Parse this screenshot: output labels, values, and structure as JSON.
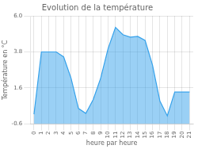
{
  "chart_data": {
    "type": "area",
    "title": "Evolution de la température",
    "xlabel": "heure par heure",
    "ylabel": "Température en °C",
    "x": [
      0,
      1,
      2,
      3,
      4,
      5,
      6,
      7,
      8,
      9,
      10,
      11,
      12,
      13,
      14,
      15,
      16,
      17,
      18,
      19,
      20,
      21
    ],
    "values": [
      0.0,
      3.8,
      3.8,
      3.8,
      3.5,
      2.2,
      0.35,
      0.05,
      0.9,
      2.2,
      4.0,
      5.3,
      4.85,
      4.7,
      4.75,
      4.5,
      3.0,
      0.8,
      -0.1,
      1.35,
      1.35,
      1.35
    ],
    "xlim": [
      -0.5,
      21.5
    ],
    "xticks": [
      0,
      1,
      2,
      3,
      4,
      5,
      6,
      7,
      8,
      9,
      10,
      11,
      12,
      13,
      14,
      15,
      16,
      17,
      18,
      19,
      20,
      21
    ],
    "ylim": [
      -0.6,
      6.0
    ],
    "yticks": [
      -0.6,
      1.6,
      3.8,
      {
        "value": 6.0,
        "label": "6.0"
      }
    ],
    "grid": true
  }
}
